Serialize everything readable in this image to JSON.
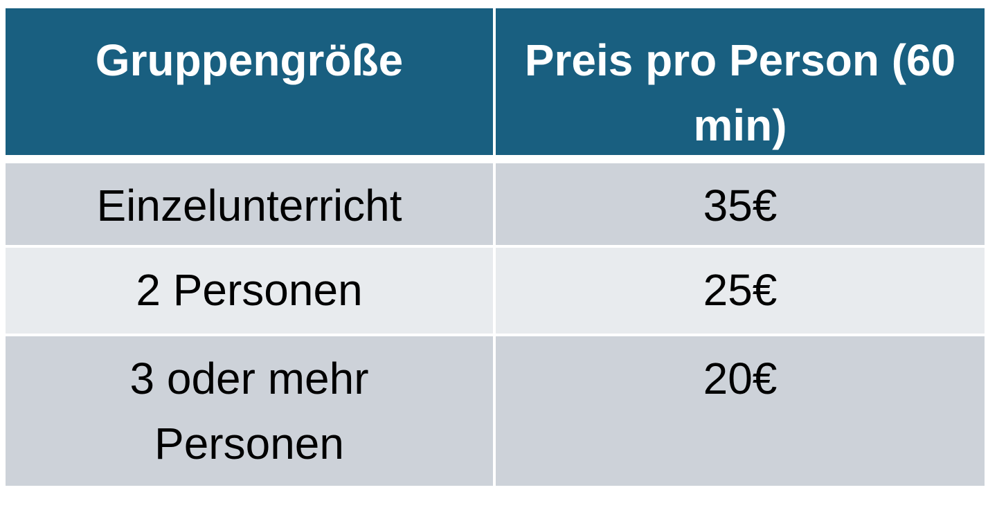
{
  "table": {
    "header": [
      "Gruppengröße",
      "Preis pro Person (60 min)"
    ],
    "rows": [
      [
        "Einzelunterricht",
        "35€"
      ],
      [
        "2 Personen",
        "25€"
      ],
      [
        "3 oder mehr Personen",
        "20€"
      ]
    ]
  }
}
